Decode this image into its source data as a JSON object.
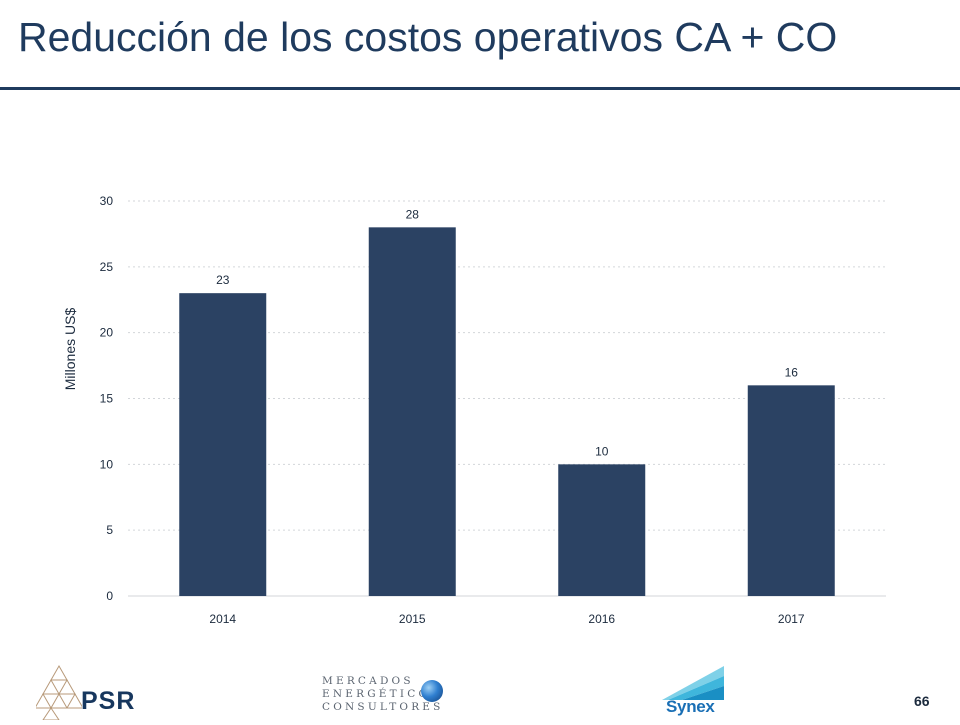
{
  "slide": {
    "title": "Reducción de los costos operativos CA + CO",
    "page_number": "66",
    "accent_color": "#1f3b5e"
  },
  "chart_data": {
    "type": "bar",
    "categories": [
      "2014",
      "2015",
      "2016",
      "2017"
    ],
    "values": [
      23,
      28,
      10,
      16
    ],
    "data_labels": [
      "23",
      "28",
      "10",
      "16"
    ],
    "ylabel": "Millones US$",
    "xlabel": "",
    "ylim": [
      0,
      30
    ],
    "yticks": [
      0,
      5,
      10,
      15,
      20,
      25,
      30
    ],
    "grid": true,
    "legend": "none",
    "bar_color": "#2b4263"
  },
  "footer": {
    "logos": {
      "psr": "PSR",
      "mercados": [
        "MERCADOS",
        "ENERGÉTICOS",
        "CONSULTORES"
      ],
      "synex": "Synex"
    }
  }
}
